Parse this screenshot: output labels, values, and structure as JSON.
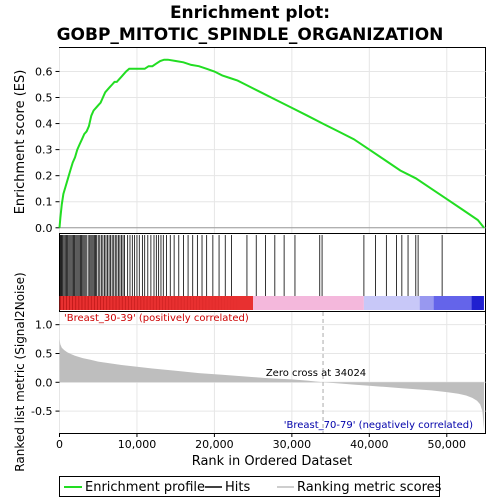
{
  "title_line1": "Enrichment plot:",
  "title_line2": "GOBP_MITOTIC_SPINDLE_ORGANIZATION",
  "colors": {
    "es_line": "#22dd22",
    "hit_line": "#000000",
    "metric_fill": "#bebebe",
    "positive_label": "#cc0000",
    "negative_label": "#0000aa"
  },
  "chart_data": [
    {
      "type": "line",
      "name": "enrichment-profile",
      "ylabel": "Enrichment score (ES)",
      "xlim": [
        0,
        55000
      ],
      "ylim": [
        -0.02,
        0.69
      ],
      "y_ticks": [
        "0.0",
        "0.1",
        "0.2",
        "0.3",
        "0.4",
        "0.5",
        "0.6"
      ],
      "y_tick_values": [
        0.0,
        0.1,
        0.2,
        0.3,
        0.4,
        0.5,
        0.6
      ],
      "x": [
        0,
        120,
        300,
        500,
        800,
        1100,
        1400,
        1700,
        2000,
        2300,
        2600,
        2900,
        3200,
        3500,
        3800,
        4100,
        4400,
        4700,
        5000,
        5300,
        5600,
        5900,
        6200,
        6500,
        6800,
        7100,
        7400,
        7700,
        8000,
        8300,
        8600,
        9000,
        9500,
        10000,
        10500,
        11000,
        11500,
        12000,
        12500,
        13000,
        13500,
        14000,
        15000,
        16000,
        17000,
        18000,
        19000,
        20000,
        21000,
        22000,
        23000,
        24000,
        26000,
        28000,
        30000,
        32000,
        34000,
        36000,
        38000,
        40000,
        42000,
        44000,
        46000,
        48000,
        50000,
        52000,
        54000,
        54800
      ],
      "y": [
        0.0,
        0.04,
        0.09,
        0.13,
        0.16,
        0.19,
        0.22,
        0.25,
        0.27,
        0.3,
        0.32,
        0.34,
        0.36,
        0.37,
        0.39,
        0.43,
        0.45,
        0.46,
        0.47,
        0.48,
        0.5,
        0.52,
        0.53,
        0.54,
        0.55,
        0.56,
        0.56,
        0.57,
        0.58,
        0.59,
        0.6,
        0.61,
        0.61,
        0.61,
        0.61,
        0.61,
        0.62,
        0.62,
        0.63,
        0.64,
        0.645,
        0.645,
        0.64,
        0.635,
        0.625,
        0.62,
        0.61,
        0.6,
        0.585,
        0.575,
        0.565,
        0.55,
        0.52,
        0.49,
        0.46,
        0.43,
        0.4,
        0.37,
        0.34,
        0.3,
        0.26,
        0.22,
        0.19,
        0.15,
        0.11,
        0.07,
        0.03,
        0.0
      ]
    },
    {
      "type": "scatter",
      "name": "hits",
      "xlim": [
        0,
        55000
      ],
      "x": [
        80,
        200,
        320,
        450,
        600,
        750,
        900,
        1050,
        1200,
        1350,
        1500,
        1650,
        1800,
        1950,
        2100,
        2250,
        2400,
        2550,
        2700,
        2850,
        3000,
        3150,
        3300,
        3450,
        3700,
        3900,
        4050,
        4200,
        4350,
        4500,
        4650,
        4800,
        5000,
        5200,
        5400,
        5600,
        5800,
        6000,
        6200,
        6400,
        6600,
        6800,
        7000,
        7200,
        7400,
        7600,
        7800,
        8000,
        8200,
        8400,
        8800,
        9100,
        9400,
        9700,
        10000,
        10300,
        10700,
        11000,
        11400,
        11800,
        12200,
        12500,
        12800,
        13100,
        13400,
        13800,
        14300,
        14800,
        15400,
        16000,
        16600,
        17200,
        17800,
        18400,
        19000,
        19800,
        20600,
        21400,
        22200,
        24200,
        25400,
        26600,
        27800,
        29000,
        30400,
        33600,
        33900,
        39300,
        40800,
        42200,
        43500,
        44200,
        45000,
        46000,
        46300,
        49400
      ]
    },
    {
      "type": "area",
      "name": "ranking-metric",
      "ylabel": "Ranked list metric (Signal2Noise)",
      "xlabel": "Rank in Ordered Dataset",
      "xlim": [
        0,
        55000
      ],
      "ylim": [
        -0.88,
        1.22
      ],
      "x_ticks": [
        "0",
        "10,000",
        "20,000",
        "30,000",
        "40,000",
        "50,000"
      ],
      "x_tick_values": [
        0,
        10000,
        20000,
        30000,
        40000,
        50000
      ],
      "y_ticks": [
        "1.0",
        "0.5",
        "0.0",
        "-0.5"
      ],
      "y_tick_values": [
        1.0,
        0.5,
        0.0,
        -0.5
      ],
      "x": [
        0,
        100,
        300,
        600,
        1000,
        1500,
        2000,
        3000,
        4000,
        5000,
        6000,
        8000,
        10000,
        12000,
        15000,
        18000,
        21000,
        24000,
        27000,
        30000,
        32000,
        34024,
        36000,
        38000,
        40000,
        42000,
        44000,
        46000,
        48000,
        50000,
        51500,
        52500,
        53300,
        53900,
        54300,
        54600,
        54800
      ],
      "y": [
        0.75,
        0.66,
        0.6,
        0.56,
        0.52,
        0.49,
        0.46,
        0.42,
        0.39,
        0.36,
        0.34,
        0.3,
        0.27,
        0.24,
        0.2,
        0.16,
        0.13,
        0.1,
        0.07,
        0.05,
        0.03,
        0.0,
        -0.02,
        -0.04,
        -0.06,
        -0.08,
        -0.1,
        -0.12,
        -0.14,
        -0.17,
        -0.2,
        -0.23,
        -0.27,
        -0.32,
        -0.38,
        -0.5,
        -0.82
      ]
    }
  ],
  "annotations": {
    "positive_label": "'Breast_30-39' (positively correlated)",
    "negative_label": "'Breast_70-79' (negatively correlated)",
    "zero_cross": "Zero cross at 34024",
    "zero_cross_x": 34024
  },
  "rank_bar": {
    "segments": [
      {
        "from": 0,
        "to": 25000,
        "color": "#e83030"
      },
      {
        "from": 25000,
        "to": 39300,
        "color": "#f4b8dc"
      },
      {
        "from": 39300,
        "to": 46500,
        "color": "#c8c8f8"
      },
      {
        "from": 46500,
        "to": 48300,
        "color": "#9898f0"
      },
      {
        "from": 48300,
        "to": 53200,
        "color": "#6464ea"
      },
      {
        "from": 53200,
        "to": 54800,
        "color": "#2020d0"
      }
    ]
  },
  "legend": {
    "items": [
      {
        "label": "Enrichment profile",
        "color": "#22dd22"
      },
      {
        "label": "Hits",
        "color": "#000000"
      },
      {
        "label": "Ranking metric scores",
        "color": "#bebebe"
      }
    ]
  }
}
